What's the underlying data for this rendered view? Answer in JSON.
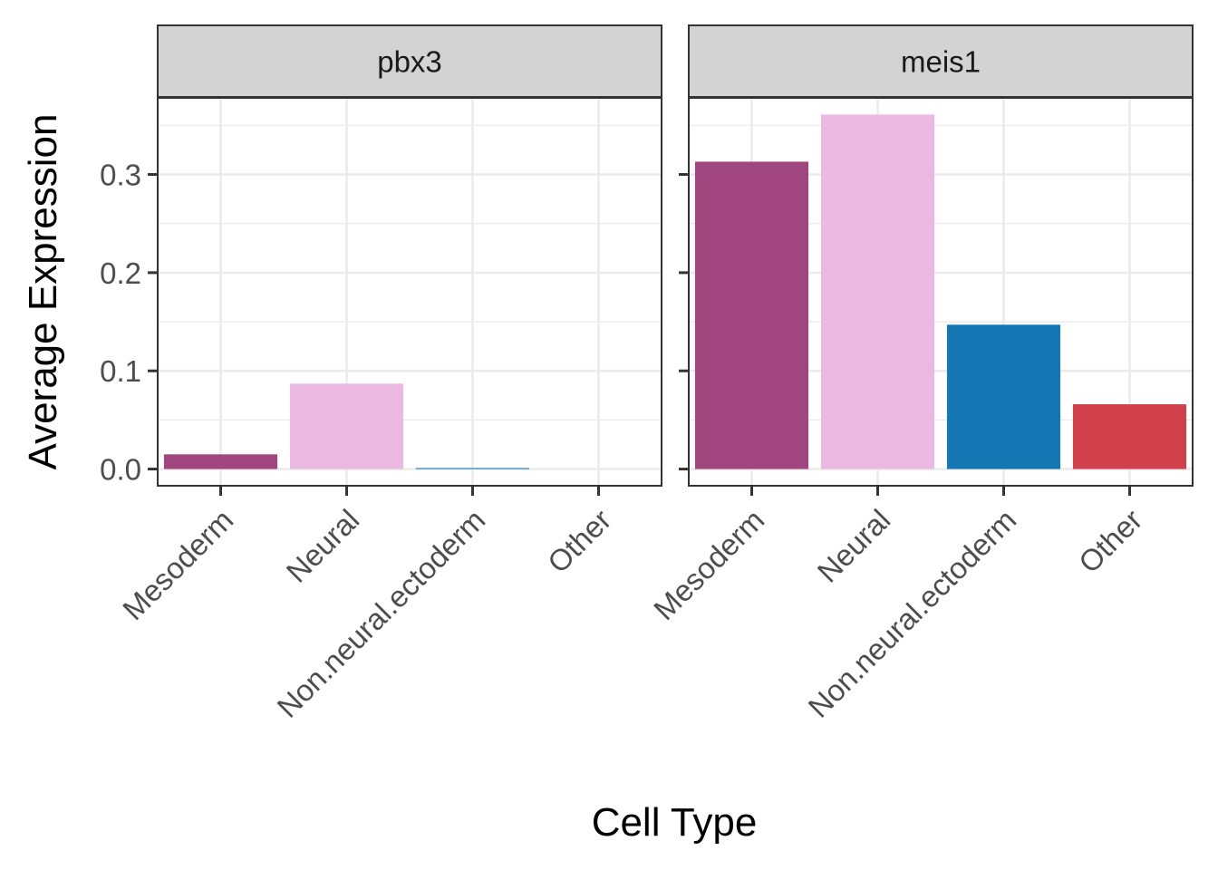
{
  "chart_data": {
    "type": "bar",
    "facet_by": "gene",
    "xlabel": "Cell Type",
    "ylabel": "Average Expression",
    "categories": [
      "Mesoderm",
      "Neural",
      "Non.neural.ectoderm",
      "Other"
    ],
    "colors": [
      "#A0457E",
      "#EBB8E1",
      "#1477B4",
      "#D0414C"
    ],
    "ylim": [
      -0.017,
      0.378
    ],
    "y_ticks": [
      "0.0",
      "0.1",
      "0.2",
      "0.3"
    ],
    "grid": true,
    "facets": [
      {
        "name": "pbx3",
        "values": [
          0.015,
          0.087,
          0.001,
          0.0
        ]
      },
      {
        "name": "meis1",
        "values": [
          0.313,
          0.361,
          0.147,
          0.066
        ]
      }
    ]
  }
}
